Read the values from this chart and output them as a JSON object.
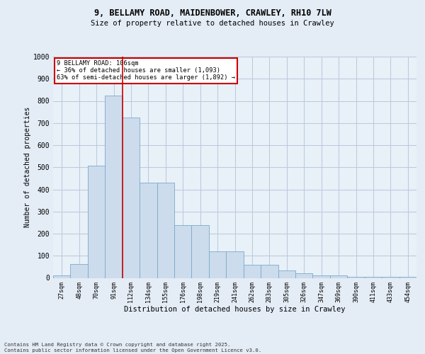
{
  "title_line1": "9, BELLAMY ROAD, MAIDENBOWER, CRAWLEY, RH10 7LW",
  "title_line2": "Size of property relative to detached houses in Crawley",
  "xlabel": "Distribution of detached houses by size in Crawley",
  "ylabel": "Number of detached properties",
  "bin_labels": [
    "27sqm",
    "48sqm",
    "70sqm",
    "91sqm",
    "112sqm",
    "134sqm",
    "155sqm",
    "176sqm",
    "198sqm",
    "219sqm",
    "241sqm",
    "262sqm",
    "283sqm",
    "305sqm",
    "326sqm",
    "347sqm",
    "369sqm",
    "390sqm",
    "411sqm",
    "433sqm",
    "454sqm"
  ],
  "bar_heights": [
    10,
    62,
    508,
    825,
    725,
    430,
    430,
    240,
    240,
    120,
    120,
    60,
    60,
    35,
    20,
    12,
    12,
    5,
    5,
    5,
    5
  ],
  "bar_color": "#ccdcec",
  "bar_edgecolor": "#7aaacb",
  "annotation_text": "9 BELLAMY ROAD: 106sqm\n← 36% of detached houses are smaller (1,093)\n63% of semi-detached houses are larger (1,892) →",
  "annotation_box_facecolor": "#ffffff",
  "annotation_box_edgecolor": "#cc0000",
  "vline_color": "#cc0000",
  "grid_color": "#b8c8dc",
  "background_color": "#e4ecf5",
  "plot_bg_color": "#e8f0f8",
  "ylim": [
    0,
    1000
  ],
  "yticks": [
    0,
    100,
    200,
    300,
    400,
    500,
    600,
    700,
    800,
    900,
    1000
  ],
  "footer_text": "Contains HM Land Registry data © Crown copyright and database right 2025.\nContains public sector information licensed under the Open Government Licence v3.0.",
  "vline_bar_index": 3.5
}
